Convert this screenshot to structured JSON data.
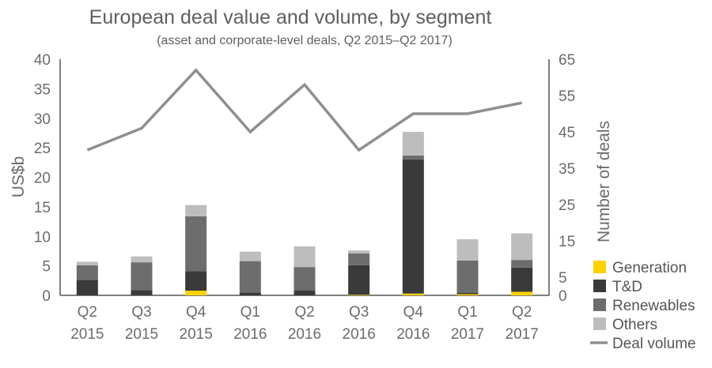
{
  "chart_data": {
    "type": "bar",
    "stacked": true,
    "title": "European deal value and volume, by segment",
    "subtitle": "(asset and corporate-level deals, Q2 2015–Q2 2017)",
    "ylabel": "US$b",
    "y2label": "Number of deals",
    "ylim": [
      0,
      40
    ],
    "yticks": [
      0,
      5,
      10,
      15,
      20,
      25,
      30,
      35,
      40
    ],
    "y2lim": [
      0,
      65
    ],
    "y2ticks": [
      0,
      5,
      15,
      25,
      35,
      45,
      55,
      65
    ],
    "grid": false,
    "legend_position": "bottom-right",
    "categories": [
      {
        "q": "Q2",
        "year": "2015"
      },
      {
        "q": "Q3",
        "year": "2015"
      },
      {
        "q": "Q4",
        "year": "2015"
      },
      {
        "q": "Q1",
        "year": "2016"
      },
      {
        "q": "Q2",
        "year": "2016"
      },
      {
        "q": "Q3",
        "year": "2016"
      },
      {
        "q": "Q4",
        "year": "2016"
      },
      {
        "q": "Q1",
        "year": "2017"
      },
      {
        "q": "Q2",
        "year": "2017"
      }
    ],
    "series": [
      {
        "name": "Generation",
        "color": "#FFD200",
        "values": [
          0.0,
          0.0,
          0.8,
          0.0,
          0.0,
          0.1,
          0.3,
          0.2,
          0.6
        ]
      },
      {
        "name": "T&D",
        "color": "#3A3A3A",
        "values": [
          2.6,
          0.9,
          3.3,
          0.5,
          0.8,
          5.0,
          22.7,
          0.2,
          4.1
        ]
      },
      {
        "name": "Renewables",
        "color": "#6D6D6E",
        "values": [
          2.5,
          4.7,
          9.3,
          5.3,
          4.0,
          2.0,
          0.7,
          5.5,
          1.3
        ]
      },
      {
        "name": "Others",
        "color": "#BDBDBD",
        "values": [
          0.6,
          1.0,
          1.9,
          1.6,
          3.5,
          0.5,
          4.0,
          3.6,
          4.5
        ]
      }
    ],
    "line": {
      "name": "Deal volume",
      "color": "#8F8F8F",
      "axis": "right",
      "values": [
        40,
        46,
        62,
        45,
        58,
        40,
        50,
        50,
        53
      ]
    }
  }
}
